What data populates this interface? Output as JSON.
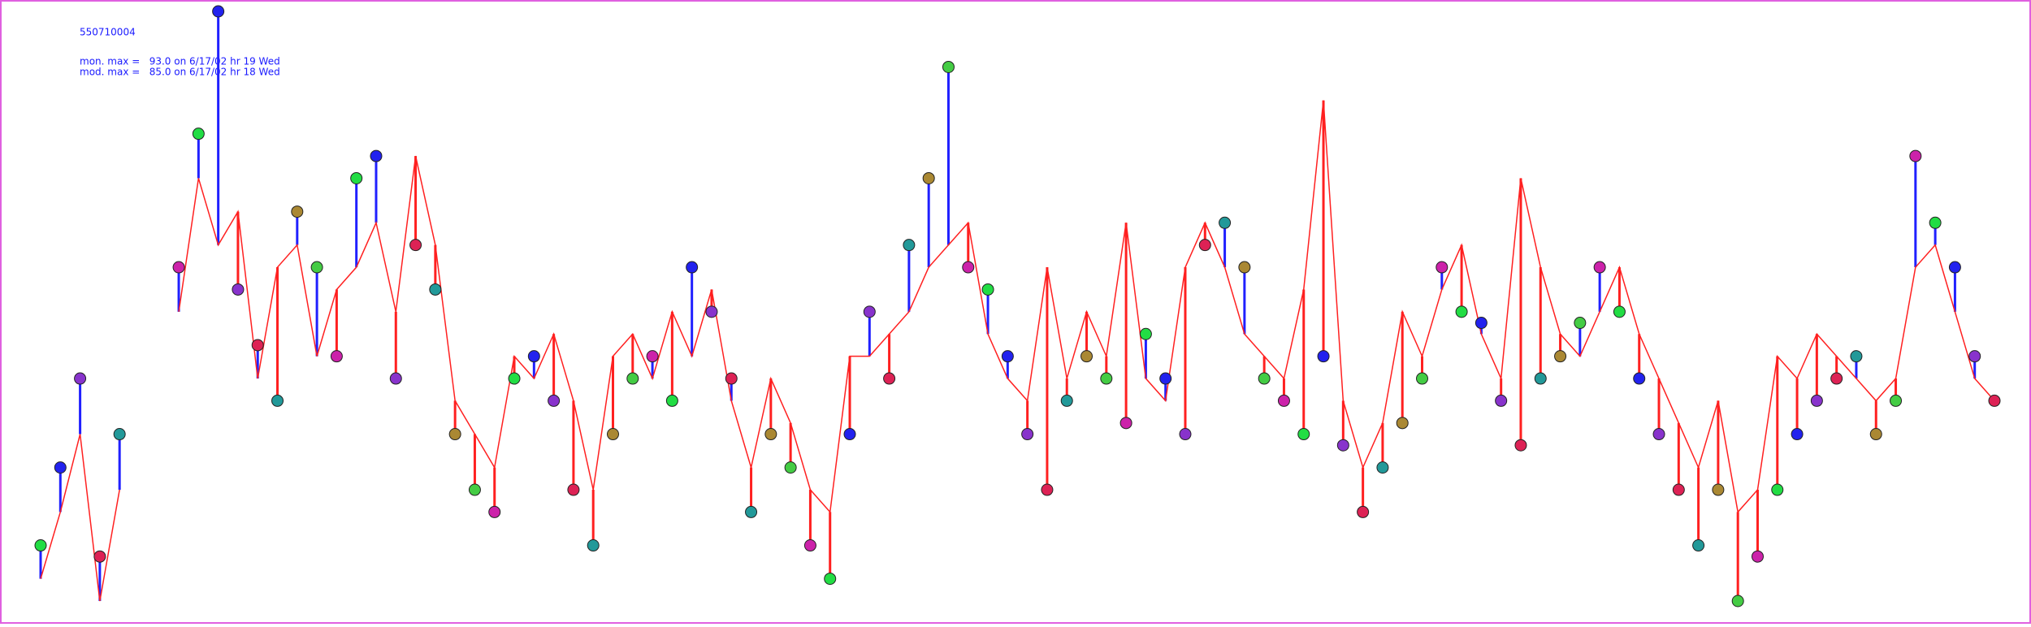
{
  "chart_data": {
    "type": "monitor-model",
    "title": "550710004",
    "annotations": [
      "mon. max =   93.0 on 6/17/02 hr 19 Wed",
      "mod. max =   85.0 on 6/17/02 hr 18 Wed"
    ],
    "over_color": "#ff2020",
    "under_color": "#2020ff",
    "marker_colors": [
      "#22dd44",
      "#2222ee",
      "#8833cc",
      "#dd2255",
      "#229999",
      "#aa8833",
      "#44cc44",
      "#cc22aa"
    ],
    "series": [
      {
        "color": "#2222ee",
        "values": [
          45,
          52,
          60,
          44,
          55,
          null,
          null,
          70,
          82,
          93,
          68,
          63,
          58,
          75,
          70,
          62,
          78,
          80,
          60,
          72,
          68,
          55,
          50,
          48,
          60,
          62,
          58,
          50,
          45,
          55,
          60,
          62,
          58,
          70,
          66,
          60,
          48,
          55,
          52,
          45,
          42,
          55,
          66,
          60,
          72,
          78,
          88,
          70,
          68,
          62,
          55,
          50,
          58,
          62,
          60,
          56,
          64,
          60,
          55,
          72,
          74,
          70,
          60,
          58,
          55,
          62,
          54,
          48,
          52,
          56,
          60,
          70,
          66,
          65,
          58,
          54,
          60,
          62,
          65,
          70,
          66,
          60,
          55,
          50,
          45,
          50,
          40,
          44,
          50,
          55,
          58,
          60,
          62,
          55,
          58,
          80,
          74,
          70,
          62,
          58
        ]
      },
      {
        "color": "#ff2020",
        "values": [
          42,
          48,
          55,
          40,
          50,
          null,
          null,
          66,
          78,
          72,
          75,
          60,
          70,
          72,
          62,
          68,
          70,
          74,
          66,
          80,
          72,
          58,
          55,
          52,
          62,
          60,
          64,
          58,
          50,
          62,
          64,
          60,
          66,
          62,
          68,
          58,
          52,
          60,
          56,
          50,
          48,
          62,
          62,
          64,
          66,
          70,
          72,
          74,
          64,
          60,
          58,
          70,
          60,
          66,
          62,
          74,
          60,
          58,
          70,
          74,
          70,
          64,
          62,
          60,
          68,
          85,
          58,
          52,
          56,
          66,
          62,
          68,
          72,
          64,
          60,
          78,
          70,
          64,
          62,
          66,
          70,
          64,
          60,
          56,
          52,
          58,
          48,
          50,
          62,
          60,
          64,
          62,
          60,
          58,
          60,
          70,
          72,
          66,
          60,
          58
        ]
      }
    ]
  }
}
